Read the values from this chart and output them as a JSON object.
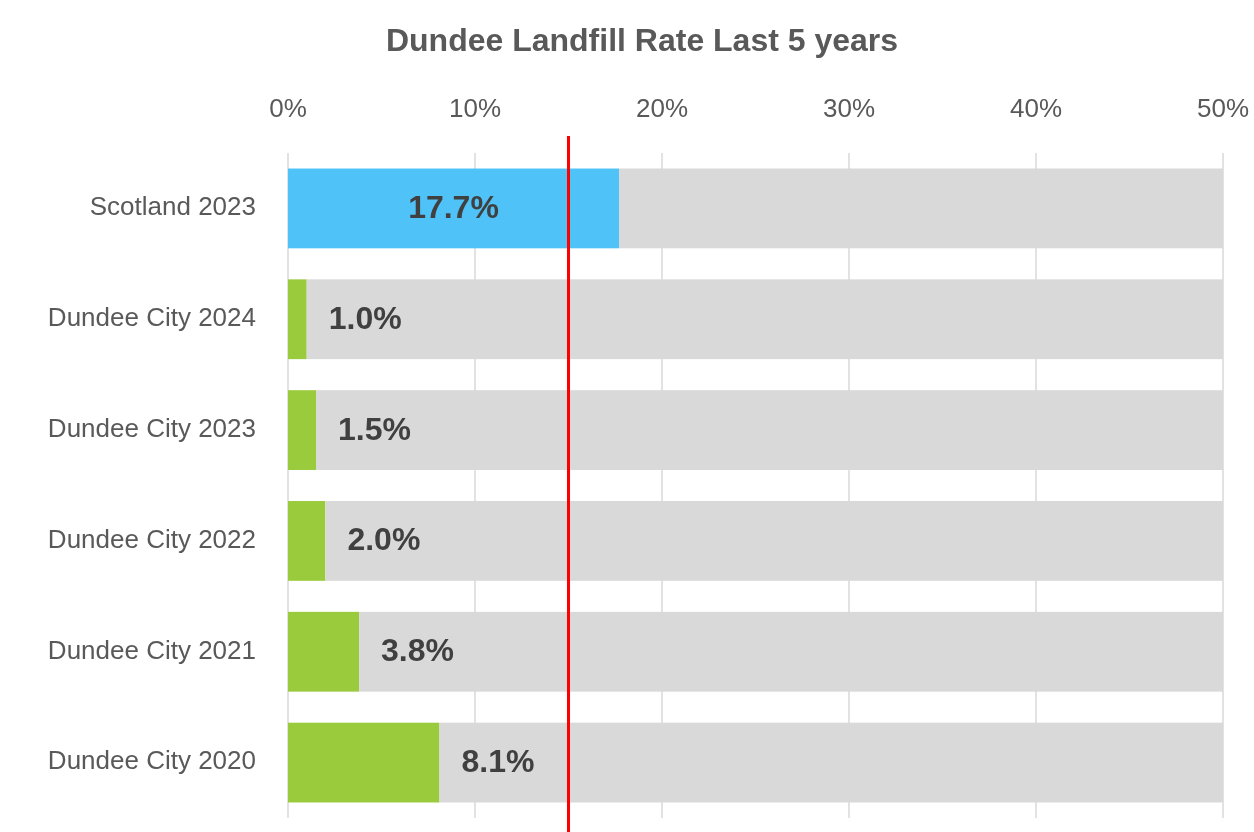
{
  "chart_data": {
    "type": "bar",
    "title": "Dundee Landfill Rate Last 5 years",
    "orientation": "horizontal",
    "stacked": true,
    "categories": [
      "Scotland 2023",
      "Dundee City 2024",
      "Dundee City 2023",
      "Dundee City 2022",
      "Dundee City 2021",
      "Dundee City 2020"
    ],
    "series": [
      {
        "colors": [
          "#4fc3f7",
          "#9acb3c",
          "#9acb3c",
          "#9acb3c",
          "#9acb3c",
          "#9acb3c"
        ],
        "values": [
          17.7,
          1.0,
          1.5,
          2.0,
          3.8,
          8.1
        ],
        "value_labels": [
          "17.7%",
          "1.0%",
          "1.5%",
          "2.0%",
          "3.8%",
          "8.1%"
        ]
      },
      {
        "color": "#d9d9d9",
        "values": [
          32.3,
          49.0,
          48.5,
          48.0,
          46.2,
          41.9
        ]
      }
    ],
    "xlim": [
      0,
      50
    ],
    "xticks": [
      {
        "value": 0,
        "label": "0%"
      },
      {
        "value": 10,
        "label": "10%"
      },
      {
        "value": 20,
        "label": "20%"
      },
      {
        "value": 30,
        "label": "30%"
      },
      {
        "value": 40,
        "label": "40%"
      },
      {
        "value": 50,
        "label": "50%"
      }
    ],
    "grid": "x",
    "ref_lines": [
      {
        "axis": "x",
        "value": 15,
        "color": "#ff0000",
        "line_style": "solid"
      }
    ]
  }
}
